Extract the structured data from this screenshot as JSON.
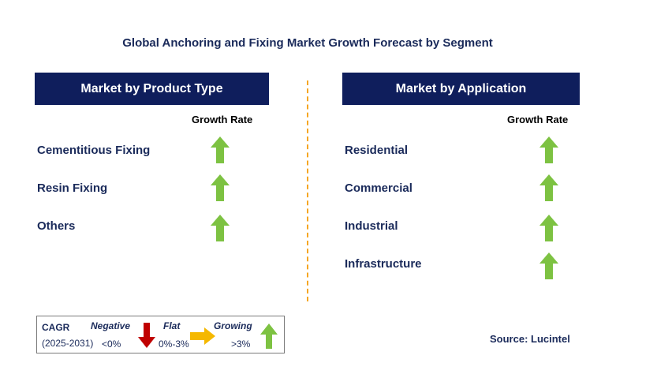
{
  "title": "Global Anchoring and Fixing Market Growth Forecast by Segment",
  "left_panel": {
    "header": "Market by Product Type",
    "growth_rate_label": "Growth Rate",
    "items": [
      "Cementitious Fixing",
      "Resin Fixing",
      "Others"
    ]
  },
  "right_panel": {
    "header": "Market by Application",
    "growth_rate_label": "Growth Rate",
    "items": [
      "Residential",
      "Commercial",
      "Industrial",
      "Infrastructure"
    ]
  },
  "legend": {
    "cagr": "CAGR",
    "period": "(2025-2031)",
    "negative_label": "Negative",
    "negative_range": "<0%",
    "flat_label": "Flat",
    "flat_range": "0%-3%",
    "growing_label": "Growing",
    "growing_range": ">3%"
  },
  "source": "Source: Lucintel",
  "colors": {
    "header_bg": "#0f1e5c",
    "growing": "#7dc242",
    "negative": "#c00000",
    "flat": "#f5b800",
    "divider": "#f5a623"
  }
}
